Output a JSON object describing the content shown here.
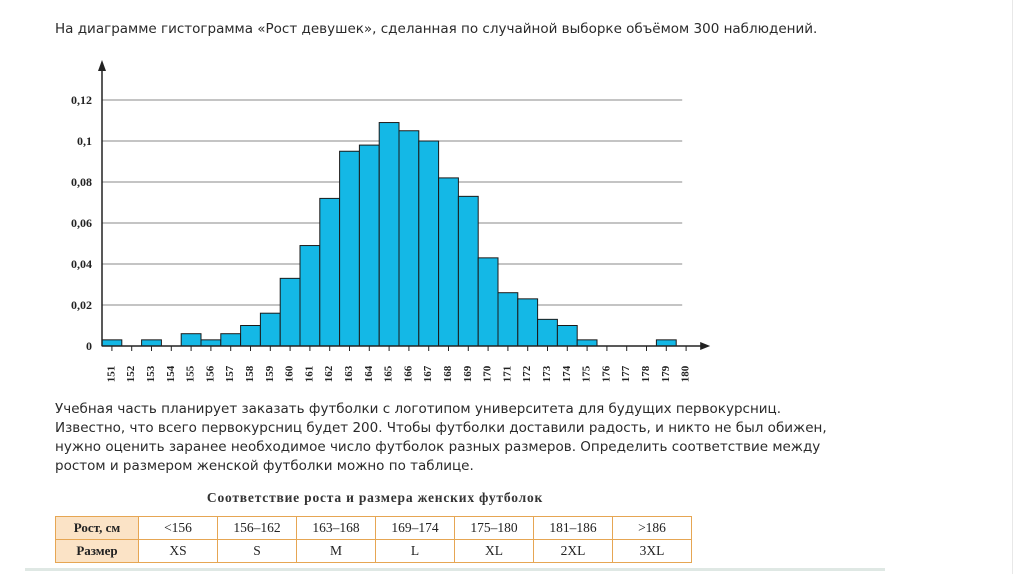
{
  "intro": "На диаграмме гистограмма «Рост девушек», сделанная по случайной выборке объёмом 300 наблюдений.",
  "chart_data": {
    "type": "bar",
    "x_ticks": [
      "151",
      "152",
      "153",
      "154",
      "155",
      "156",
      "157",
      "158",
      "159",
      "160",
      "161",
      "162",
      "163",
      "164",
      "165",
      "166",
      "167",
      "168",
      "169",
      "170",
      "171",
      "172",
      "173",
      "174",
      "175",
      "176",
      "177",
      "178",
      "179",
      "180"
    ],
    "categories": [
      "151",
      "152",
      "153",
      "154",
      "155",
      "156",
      "157",
      "158",
      "159",
      "160",
      "161",
      "162",
      "163",
      "164",
      "165",
      "166",
      "167",
      "168",
      "169",
      "170",
      "171",
      "172",
      "173",
      "174",
      "175",
      "176",
      "177",
      "178",
      "179"
    ],
    "values": [
      0.003,
      0,
      0.003,
      0,
      0.006,
      0.003,
      0.006,
      0.01,
      0.016,
      0.033,
      0.049,
      0.072,
      0.095,
      0.098,
      0.109,
      0.105,
      0.1,
      0.082,
      0.073,
      0.043,
      0.026,
      0.023,
      0.013,
      0.01,
      0.003,
      0,
      0,
      0,
      0.003
    ],
    "y_ticks": [
      "0",
      "0,02",
      "0,04",
      "0,06",
      "0,08",
      "0,1",
      "0,12"
    ],
    "ylim": [
      0,
      0.12
    ],
    "grid": true,
    "bar_color": "#14b8e6",
    "title": "",
    "xlabel": "",
    "ylabel": ""
  },
  "paragraph": "Учебная часть планирует заказать футболки с логотипом университета для будущих первокурсниц. Известно, что всего первокурсниц будет 200. Чтобы футболки доставили радость, и никто не был обижен, нужно оценить заранее необходимое число футболок разных размеров. Определить соответствие между ростом и размером женской футболки можно по таблице.",
  "table": {
    "title": "Соответствие роста и размера женских футболок",
    "row1_header": "Рост, см",
    "row2_header": "Размер",
    "heights": [
      "<156",
      "156–162",
      "163–168",
      "169–174",
      "175–180",
      "181–186",
      ">186"
    ],
    "sizes": [
      "XS",
      "S",
      "M",
      "L",
      "XL",
      "2XL",
      "3XL"
    ]
  }
}
